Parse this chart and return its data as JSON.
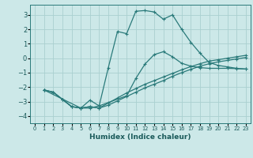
{
  "xlabel": "Humidex (Indice chaleur)",
  "ylabel": "",
  "background_color": "#cce8e8",
  "grid_color": "#aad0d0",
  "line_color": "#2a7a7a",
  "xlim": [
    -0.5,
    23.5
  ],
  "ylim": [
    -4.5,
    3.7
  ],
  "xticks": [
    0,
    1,
    2,
    3,
    4,
    5,
    6,
    7,
    8,
    9,
    10,
    11,
    12,
    13,
    14,
    15,
    16,
    17,
    18,
    19,
    20,
    21,
    22,
    23
  ],
  "yticks": [
    -4,
    -3,
    -2,
    -1,
    0,
    1,
    2,
    3
  ],
  "curve1_x": [
    1,
    2,
    3,
    4,
    5,
    6,
    7,
    8,
    9,
    10,
    11,
    12,
    13,
    14,
    15,
    16,
    17,
    18,
    19,
    20,
    21,
    22,
    23
  ],
  "curve1_y": [
    -2.2,
    -2.35,
    -2.85,
    -3.35,
    -3.45,
    -2.9,
    -3.3,
    -0.65,
    1.85,
    1.7,
    3.25,
    3.3,
    3.2,
    2.7,
    3.0,
    2.0,
    1.1,
    0.35,
    -0.3,
    -0.5,
    -0.6,
    -0.7,
    -0.75
  ],
  "curve2_x": [
    1,
    2,
    3,
    4,
    5,
    6,
    7,
    8,
    9,
    10,
    11,
    12,
    13,
    14,
    15,
    16,
    17,
    18,
    19,
    20,
    21,
    22,
    23
  ],
  "curve2_y": [
    -2.2,
    -2.35,
    -2.85,
    -3.35,
    -3.45,
    -3.35,
    -3.45,
    -3.25,
    -2.95,
    -2.65,
    -2.35,
    -2.05,
    -1.8,
    -1.55,
    -1.25,
    -1.0,
    -0.77,
    -0.55,
    -0.38,
    -0.25,
    -0.15,
    -0.05,
    0.05
  ],
  "curve3_x": [
    1,
    2,
    3,
    4,
    5,
    6,
    7,
    8,
    9,
    10,
    11,
    12,
    13,
    14,
    15,
    16,
    17,
    18,
    19,
    20,
    21,
    22,
    23
  ],
  "curve3_y": [
    -2.2,
    -2.35,
    -2.85,
    -3.35,
    -3.45,
    -3.35,
    -3.45,
    -3.1,
    -2.75,
    -2.4,
    -2.1,
    -1.8,
    -1.55,
    -1.3,
    -1.05,
    -0.8,
    -0.58,
    -0.38,
    -0.2,
    -0.1,
    0.0,
    0.1,
    0.2
  ],
  "curve4_x": [
    1,
    5,
    6,
    7,
    10,
    11,
    12,
    13,
    14,
    15,
    16,
    17,
    18,
    19,
    20,
    21,
    22,
    23
  ],
  "curve4_y": [
    -2.2,
    -3.45,
    -3.45,
    -3.3,
    -2.6,
    -1.4,
    -0.4,
    0.25,
    0.45,
    0.1,
    -0.35,
    -0.55,
    -0.65,
    -0.7,
    -0.7,
    -0.7,
    -0.72,
    -0.75
  ]
}
